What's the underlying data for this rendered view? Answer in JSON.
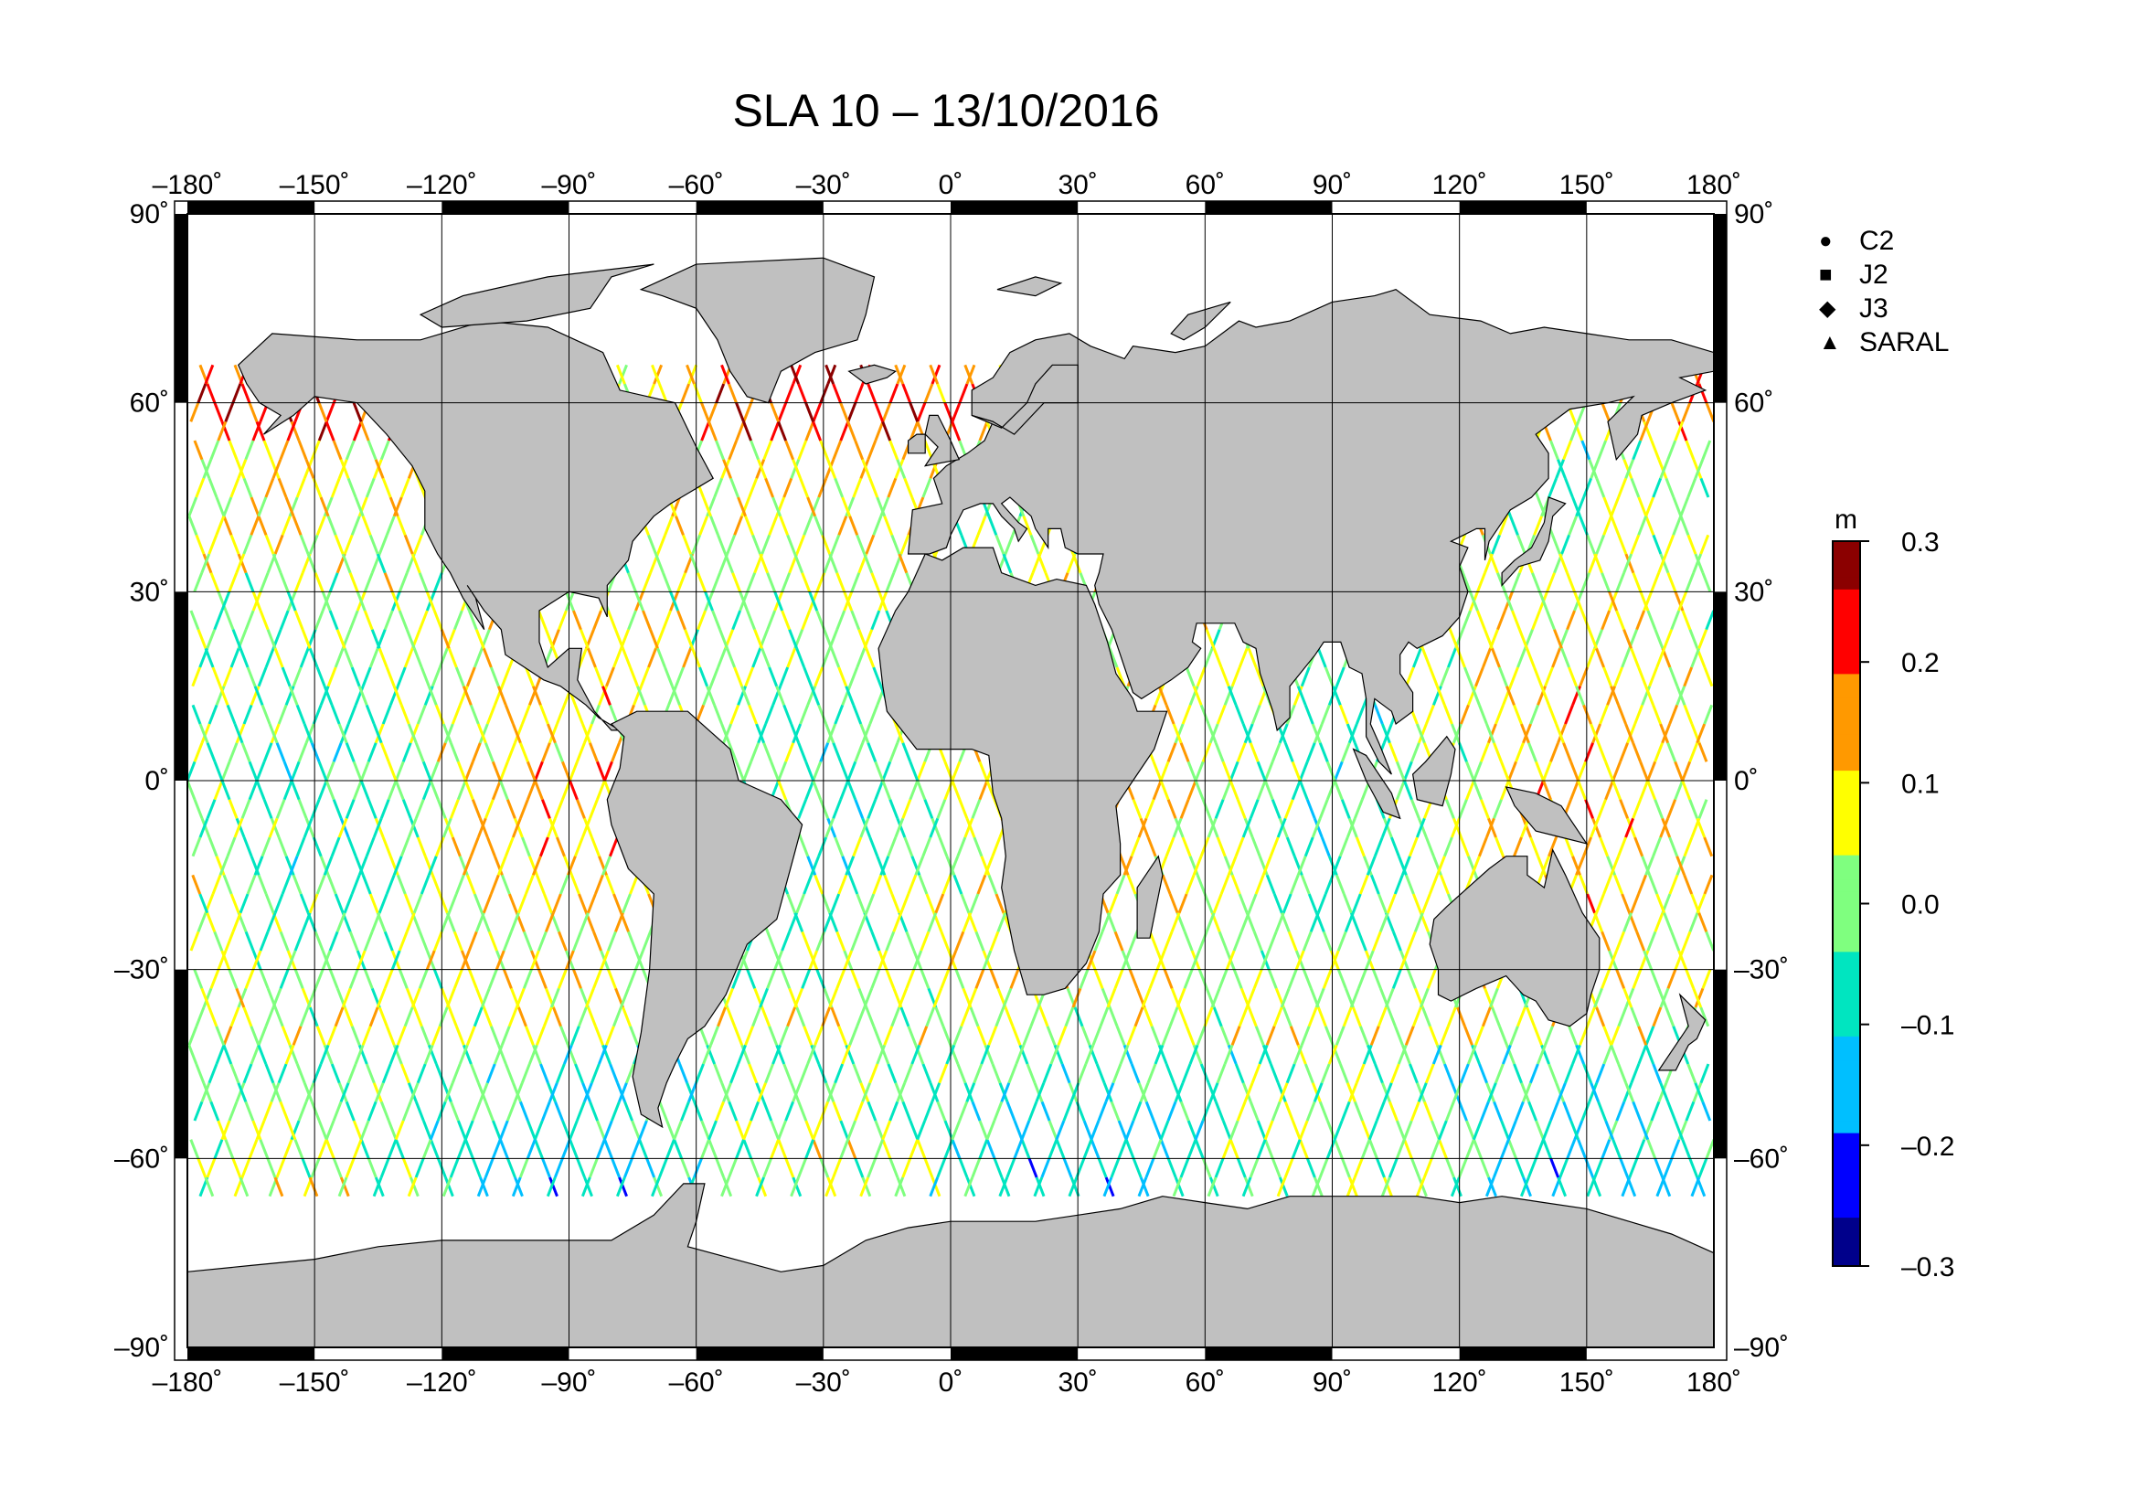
{
  "title": "SLA 10 – 13/10/2016",
  "axes": {
    "lon_ticks": [
      "–180",
      "–150",
      "–120",
      "–90",
      "–60",
      "–30",
      "0",
      "30",
      "60",
      "90",
      "120",
      "150",
      "180"
    ],
    "lat_ticks": [
      "90",
      "60",
      "30",
      "0",
      "–30",
      "–60",
      "–90"
    ],
    "degree_symbol": "˚"
  },
  "legend": {
    "items": [
      {
        "label": "C2",
        "symbol": "circle"
      },
      {
        "label": "J2",
        "symbol": "square"
      },
      {
        "label": "J3",
        "symbol": "diamond"
      },
      {
        "label": "SARAL",
        "symbol": "triangle"
      }
    ]
  },
  "colorbar": {
    "unit": "m",
    "ticks": [
      "0.3",
      "0.2",
      "0.1",
      "0.0",
      "–0.1",
      "–0.2",
      "–0.3"
    ],
    "min": -0.3,
    "max": 0.3,
    "colors": [
      "#00008b",
      "#0000ff",
      "#00bfff",
      "#00e5c0",
      "#7fff7f",
      "#ffff00",
      "#ff9900",
      "#ff0000",
      "#8b0000"
    ]
  },
  "map_style": {
    "land_color": "#c0c0c0",
    "ocean_color": "#ffffff",
    "grid_color": "#000000",
    "projection": "equirectangular",
    "lon_range": [
      -180,
      180
    ],
    "lat_range": [
      -90,
      90
    ]
  }
}
